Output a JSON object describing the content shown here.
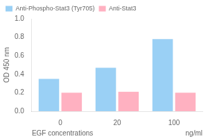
{
  "chart_data": {
    "type": "bar",
    "categories": [
      "0",
      "20",
      "100"
    ],
    "series": [
      {
        "name": "Anti-Phospho-Stat3 (Tyr705)",
        "values": [
          0.35,
          0.47,
          0.78
        ]
      },
      {
        "name": "Anti-Stat3",
        "values": [
          0.2,
          0.21,
          0.2
        ]
      }
    ],
    "xlabel": "EGF concentrations",
    "annotations": [
      "ng/ml"
    ],
    "ylabel": "OD 450 nm",
    "ylim": [
      0.0,
      1.0
    ],
    "yticks": [
      {
        "value": 0.0,
        "label": "0.0"
      },
      0.2,
      0.4,
      0.6,
      0.8,
      {
        "value": 1.0,
        "label": "1.0"
      }
    ],
    "grid": false,
    "legend": "upper left"
  }
}
